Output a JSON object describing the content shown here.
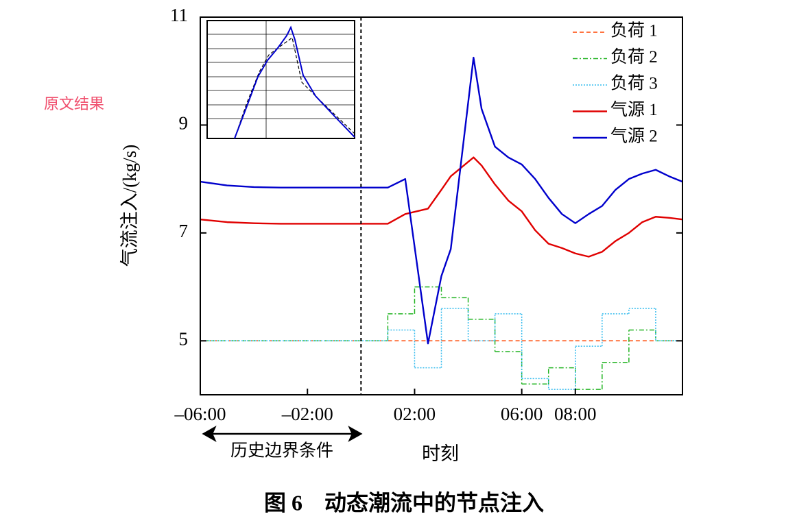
{
  "chart_data": {
    "type": "line",
    "side_label": "原文结果",
    "ylabel": "气流注入/(kg/s)",
    "xlabel": "时刻",
    "annotation": "历史边界条件",
    "caption": "图 6　动态潮流中的节点注入",
    "xlim": [
      -6,
      12
    ],
    "ylim": [
      4,
      11
    ],
    "xticks": [
      {
        "value": -6,
        "label": "–06:00"
      },
      {
        "value": -2,
        "label": "–02:00"
      },
      {
        "value": 2,
        "label": "02:00"
      },
      {
        "value": 6,
        "label": "06:00"
      },
      {
        "value": 8,
        "label": "08:00"
      }
    ],
    "yticks": [
      5,
      7,
      9,
      11
    ],
    "vline": 0,
    "legend": "upper right",
    "x": [
      -6,
      -5,
      -4,
      -3,
      -2,
      -1,
      0,
      1,
      1.65,
      2.5,
      3,
      3.35,
      4.2,
      4.5,
      5,
      5.5,
      6,
      6.5,
      7,
      7.5,
      8,
      8.5,
      9,
      9.5,
      10,
      10.5,
      11,
      11.5,
      12
    ],
    "series": [
      {
        "name": "负荷 1",
        "color": "#ff4500",
        "style": "dashed",
        "step": true,
        "x": [
          -6,
          1,
          2,
          3,
          4,
          5,
          6,
          7,
          8,
          9,
          10,
          11
        ],
        "values": [
          5,
          5,
          5,
          5,
          5,
          5,
          5,
          5,
          5,
          5,
          5,
          5
        ]
      },
      {
        "name": "负荷 2",
        "color": "#22b422",
        "style": "dashdot",
        "step": true,
        "x": [
          -6,
          1,
          2,
          3,
          4,
          5,
          6,
          7,
          8,
          9,
          10,
          11
        ],
        "values": [
          5,
          5.5,
          6.0,
          5.8,
          5.4,
          4.8,
          4.2,
          4.5,
          4.1,
          4.6,
          5.2,
          5.0
        ]
      },
      {
        "name": "负荷 3",
        "color": "#33bbee",
        "style": "dotted",
        "step": true,
        "x": [
          -6,
          1,
          2,
          3,
          4,
          5,
          6,
          7,
          8,
          9,
          10,
          11
        ],
        "values": [
          5,
          5.2,
          4.5,
          5.6,
          5.0,
          5.5,
          4.3,
          4.1,
          4.9,
          5.5,
          5.6,
          5.0
        ]
      },
      {
        "name": "气源 1",
        "color": "#e00000",
        "style": "solid",
        "values": [
          7.25,
          7.2,
          7.18,
          7.17,
          7.17,
          7.17,
          7.17,
          7.17,
          7.35,
          7.45,
          7.8,
          8.05,
          8.4,
          8.25,
          7.9,
          7.6,
          7.4,
          7.05,
          6.8,
          6.72,
          6.62,
          6.56,
          6.65,
          6.85,
          7.0,
          7.2,
          7.3,
          7.28,
          7.25
        ]
      },
      {
        "name": "气源 2",
        "color": "#0000cc",
        "style": "solid",
        "values": [
          7.95,
          7.88,
          7.85,
          7.84,
          7.84,
          7.84,
          7.84,
          7.84,
          8.0,
          4.95,
          6.2,
          6.7,
          10.25,
          9.3,
          8.6,
          8.4,
          8.27,
          8.0,
          7.65,
          7.35,
          7.18,
          7.35,
          7.5,
          7.8,
          8.0,
          8.1,
          8.17,
          8.05,
          7.95
        ]
      }
    ]
  }
}
